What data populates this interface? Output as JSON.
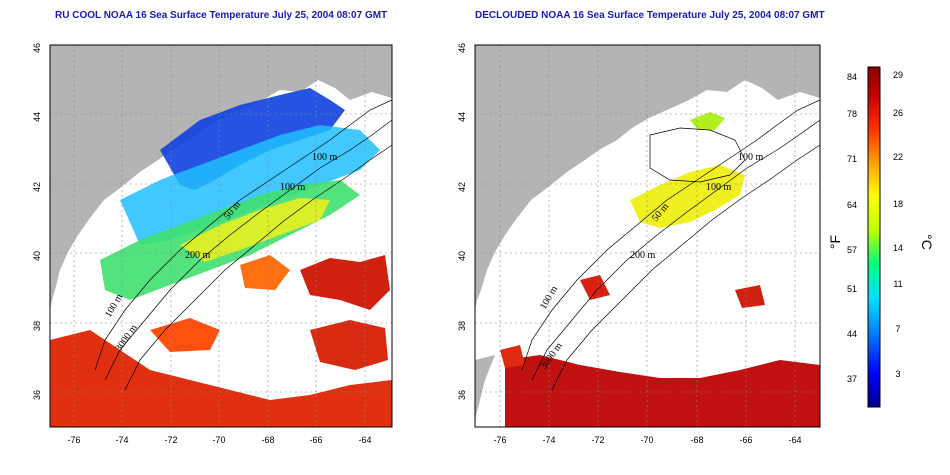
{
  "panels": [
    {
      "id": "left",
      "title": "RU COOL NOAA 16 Sea Surface Temperature July 25, 2004 08:07 GMT",
      "contour_labels": [
        "100 m",
        "100 m",
        "50 m",
        "200 m",
        "100 m",
        "3000 m"
      ]
    },
    {
      "id": "right",
      "title": "DECLOUDED NOAA 16 Sea Surface Temperature July 25, 2004 08:07 GMT",
      "contour_labels": [
        "100 m",
        "100 m",
        "50 m",
        "200 m",
        "100 m",
        "3000 m"
      ]
    }
  ],
  "axes": {
    "x_ticks": [
      "-76",
      "-74",
      "-72",
      "-70",
      "-68",
      "-66",
      "-64"
    ],
    "y_ticks": [
      "46",
      "44",
      "42",
      "40",
      "38",
      "36"
    ],
    "lon_range": [
      -77,
      -63
    ],
    "lat_range": [
      35,
      46
    ],
    "gridlines": "dotted"
  },
  "colorbar": {
    "fahrenheit_ticks": [
      "84",
      "78",
      "71",
      "64",
      "57",
      "51",
      "44",
      "37"
    ],
    "celsius_ticks": [
      "29",
      "26",
      "22",
      "18",
      "14",
      "11",
      "7",
      "3"
    ],
    "fahrenheit_unit": "°F",
    "celsius_unit": "°C",
    "colors": [
      "#00008b",
      "#0000ff",
      "#0080ff",
      "#00e0ff",
      "#00ff80",
      "#c0ff00",
      "#ffff00",
      "#ffa000",
      "#ff3000",
      "#c00000",
      "#8b0000"
    ]
  },
  "colors": {
    "land": "#b4b4b4",
    "cloud": "#ffffff",
    "contour": "#000000",
    "title": "#1a1ab0"
  }
}
